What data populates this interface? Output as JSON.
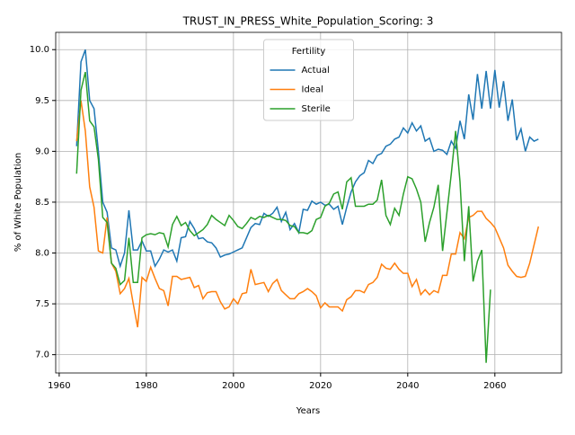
{
  "chart_data": {
    "type": "line",
    "title": "TRUST_IN_PRESS_White_Population_Scoring: 3",
    "xlabel": "Years",
    "ylabel": "% of White Population",
    "legend_title": "Fertility",
    "legend": "upper center",
    "grid": true,
    "x": [
      1964,
      1965,
      1966,
      1967,
      1968,
      1969,
      1970,
      1971,
      1972,
      1973,
      1974,
      1975,
      1976,
      1977,
      1978,
      1979,
      1980,
      1981,
      1982,
      1983,
      1984,
      1985,
      1986,
      1987,
      1988,
      1989,
      1990,
      1991,
      1992,
      1993,
      1994,
      1995,
      1996,
      1997,
      1998,
      1999,
      2000,
      2001,
      2002,
      2003,
      2004,
      2005,
      2006,
      2007,
      2008,
      2009,
      2010,
      2011,
      2012,
      2013,
      2014,
      2015,
      2016,
      2017,
      2018,
      2019,
      2020,
      2021,
      2022,
      2023,
      2024,
      2025,
      2026,
      2027,
      2028,
      2029,
      2030,
      2031,
      2032,
      2033,
      2034,
      2035,
      2036,
      2037,
      2038,
      2039,
      2040,
      2041,
      2042,
      2043,
      2044,
      2045,
      2046,
      2047,
      2048,
      2049,
      2050,
      2051,
      2052,
      2053,
      2054,
      2055,
      2056,
      2057,
      2058,
      2059,
      2060,
      2061,
      2062,
      2063,
      2064,
      2065,
      2066,
      2067,
      2068,
      2069,
      2070
    ],
    "series": [
      {
        "name": "Actual",
        "color": "#1f77b4",
        "values": [
          9.05,
          9.88,
          10.0,
          9.5,
          9.42,
          9.0,
          8.5,
          8.4,
          8.05,
          8.03,
          7.87,
          8.0,
          8.42,
          8.03,
          8.03,
          8.12,
          8.02,
          8.02,
          7.87,
          7.94,
          8.03,
          8.01,
          8.03,
          7.92,
          8.15,
          8.16,
          8.31,
          8.24,
          8.14,
          8.15,
          8.11,
          8.1,
          8.05,
          7.96,
          7.98,
          7.99,
          8.01,
          8.03,
          8.05,
          8.15,
          8.25,
          8.29,
          8.28,
          8.39,
          8.36,
          8.39,
          8.45,
          8.31,
          8.4,
          8.23,
          8.29,
          8.2,
          8.43,
          8.42,
          8.51,
          8.48,
          8.5,
          8.47,
          8.48,
          8.43,
          8.46,
          8.28,
          8.45,
          8.6,
          8.7,
          8.76,
          8.79,
          8.91,
          8.88,
          8.96,
          8.98,
          9.05,
          9.07,
          9.12,
          9.14,
          9.23,
          9.18,
          9.28,
          9.2,
          9.25,
          9.1,
          9.13,
          9.0,
          9.02,
          9.01,
          8.97,
          9.1,
          9.03,
          9.3,
          9.12,
          9.56,
          9.31,
          9.76,
          9.42,
          9.79,
          9.42,
          9.8,
          9.43,
          9.69,
          9.3,
          9.51,
          9.11,
          9.22,
          9.0,
          9.14,
          9.1,
          9.12
        ]
      },
      {
        "name": "Ideal",
        "color": "#ff7f0e",
        "values": [
          9.1,
          9.5,
          9.2,
          8.65,
          8.45,
          8.02,
          8.0,
          8.35,
          7.9,
          7.82,
          7.6,
          7.65,
          7.75,
          7.5,
          7.27,
          7.76,
          7.72,
          7.86,
          7.75,
          7.65,
          7.63,
          7.48,
          7.77,
          7.77,
          7.74,
          7.75,
          7.76,
          7.66,
          7.68,
          7.55,
          7.61,
          7.62,
          7.62,
          7.52,
          7.45,
          7.47,
          7.55,
          7.5,
          7.6,
          7.61,
          7.84,
          7.69,
          7.7,
          7.71,
          7.62,
          7.7,
          7.74,
          7.63,
          7.59,
          7.55,
          7.55,
          7.6,
          7.62,
          7.65,
          7.62,
          7.58,
          7.46,
          7.51,
          7.47,
          7.47,
          7.47,
          7.43,
          7.54,
          7.57,
          7.63,
          7.63,
          7.61,
          7.69,
          7.71,
          7.76,
          7.89,
          7.85,
          7.84,
          7.9,
          7.84,
          7.8,
          7.8,
          7.67,
          7.74,
          7.59,
          7.64,
          7.59,
          7.63,
          7.61,
          7.78,
          7.78,
          7.99,
          7.99,
          8.2,
          8.14,
          8.35,
          8.37,
          8.41,
          8.41,
          8.34,
          8.3,
          8.25,
          8.15,
          8.05,
          7.88,
          7.82,
          7.77,
          7.76,
          7.77,
          7.9,
          8.08,
          8.26
        ]
      },
      {
        "name": "Sterile",
        "color": "#2ca02c",
        "values": [
          8.78,
          9.6,
          9.78,
          9.3,
          9.24,
          8.92,
          8.35,
          8.3,
          7.9,
          7.85,
          7.69,
          7.73,
          8.15,
          7.71,
          7.71,
          8.15,
          8.18,
          8.19,
          8.18,
          8.2,
          8.19,
          8.06,
          8.28,
          8.36,
          8.27,
          8.3,
          8.22,
          8.17,
          8.2,
          8.23,
          8.28,
          8.37,
          8.33,
          8.3,
          8.27,
          8.37,
          8.32,
          8.26,
          8.24,
          8.29,
          8.35,
          8.33,
          8.36,
          8.35,
          8.37,
          8.35,
          8.33,
          8.33,
          8.32,
          8.27,
          8.26,
          8.2,
          8.2,
          8.19,
          8.22,
          8.33,
          8.35,
          8.46,
          8.49,
          8.58,
          8.6,
          8.43,
          8.7,
          8.74,
          8.46,
          8.46,
          8.46,
          8.48,
          8.48,
          8.52,
          8.72,
          8.37,
          8.28,
          8.44,
          8.37,
          8.58,
          8.75,
          8.73,
          8.63,
          8.5,
          8.11,
          8.3,
          8.45,
          8.67,
          8.02,
          8.4,
          8.78,
          9.2,
          8.7,
          7.92,
          8.46,
          7.72,
          7.92,
          8.03,
          6.92,
          7.64,
          null,
          null,
          null,
          null,
          null,
          null,
          null,
          null,
          null,
          null,
          null
        ]
      }
    ],
    "xlim": [
      1959.2,
      2075.3
    ],
    "xticks": [
      1960,
      1980,
      2000,
      2020,
      2040,
      2060
    ],
    "ylim": [
      6.82,
      10.17
    ],
    "yticks": [
      {
        "value": 7.0,
        "label": "7.0"
      },
      7.5,
      {
        "value": 8.0,
        "label": "8.0"
      },
      8.5,
      {
        "value": 9.0,
        "label": "9.0"
      },
      9.5,
      {
        "value": 10.0,
        "label": "10.0"
      }
    ]
  }
}
